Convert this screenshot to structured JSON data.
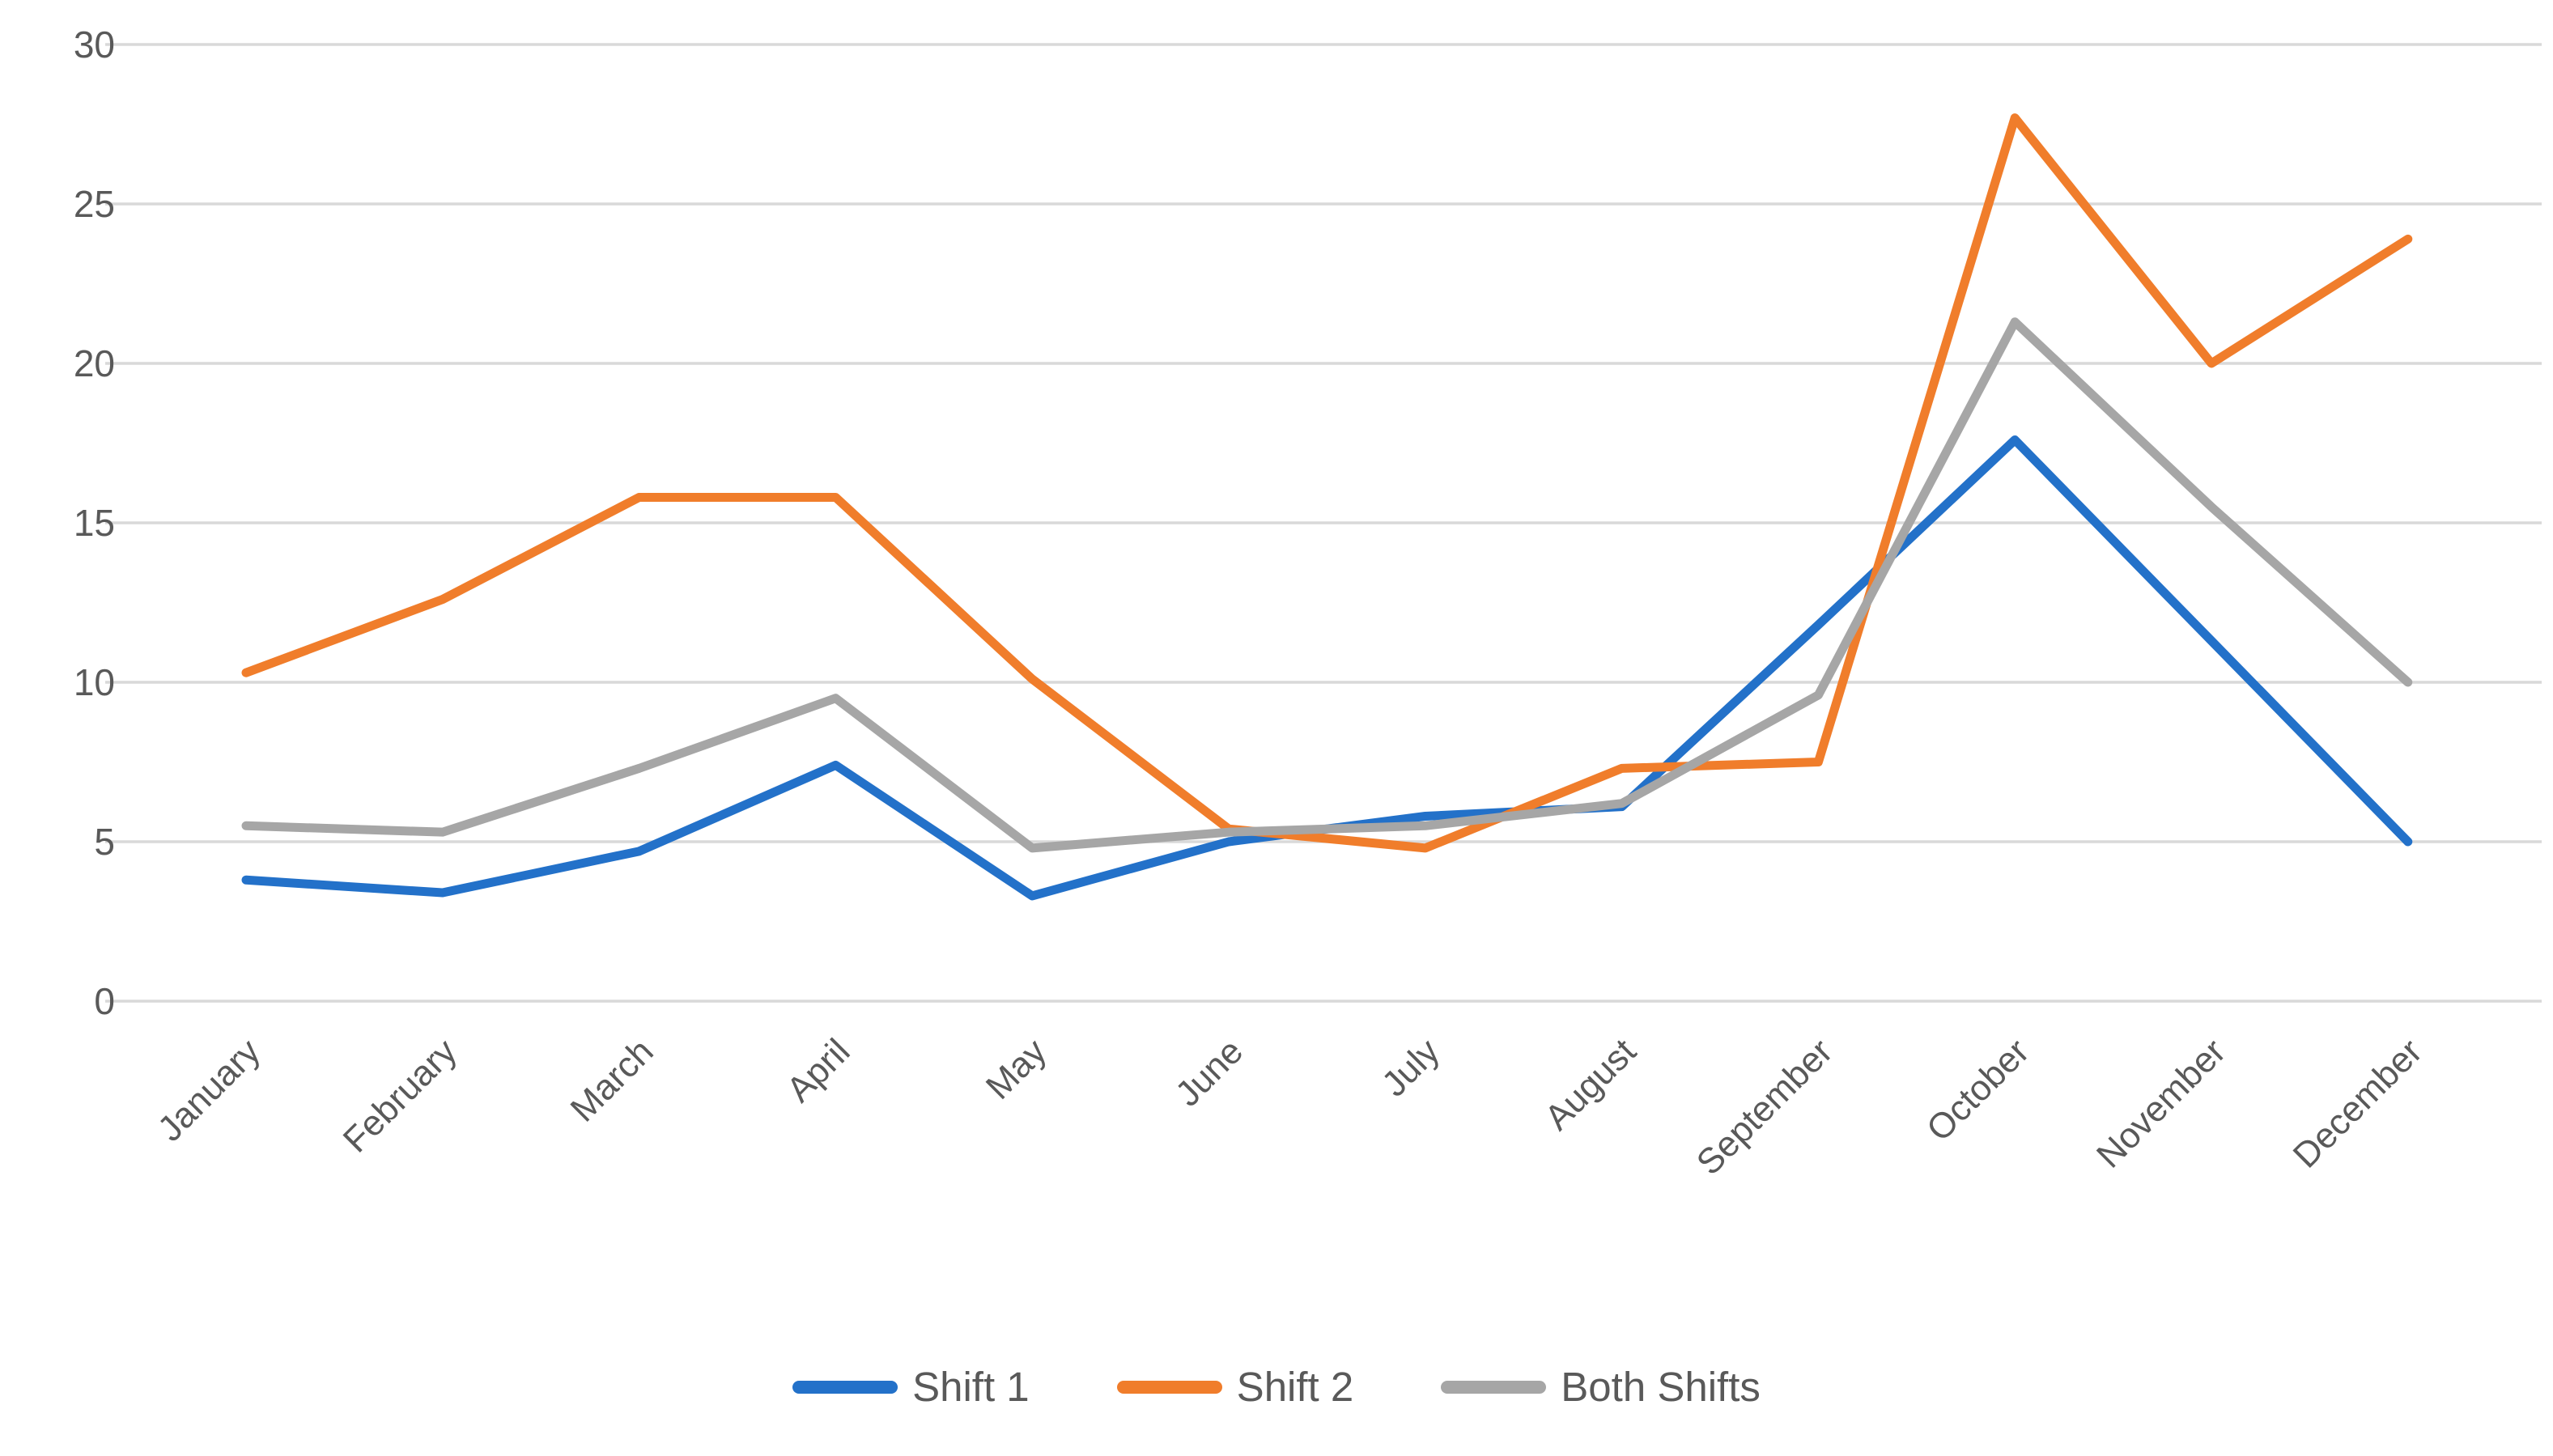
{
  "chart_data": {
    "type": "line",
    "title": "",
    "xlabel": "",
    "ylabel": "",
    "categories": [
      "January",
      "February",
      "March",
      "April",
      "May",
      "June",
      "July",
      "August",
      "September",
      "October",
      "November",
      "December"
    ],
    "series": [
      {
        "name": "Shift 1",
        "color": "#2371C9",
        "values": [
          3.8,
          3.4,
          4.7,
          7.4,
          3.3,
          5.0,
          5.8,
          6.1,
          11.8,
          17.6,
          11.3,
          5.0
        ]
      },
      {
        "name": "Shift 2",
        "color": "#F07D2B",
        "values": [
          10.3,
          12.6,
          15.8,
          15.8,
          10.1,
          5.4,
          4.8,
          7.3,
          7.5,
          27.7,
          20.0,
          23.9
        ]
      },
      {
        "name": "Both Shifts",
        "color": "#A6A6A6",
        "values": [
          5.5,
          5.3,
          7.3,
          9.5,
          4.8,
          5.3,
          5.5,
          6.2,
          9.6,
          21.3,
          15.5,
          10.0
        ]
      }
    ],
    "y_ticks": [
      0,
      5,
      10,
      15,
      20,
      25,
      30
    ],
    "ylim": [
      0,
      30
    ],
    "grid": true,
    "legend_position": "bottom",
    "colors": {
      "background": "#FFFFFF",
      "gridline": "#D9D9D9",
      "tick_text": "#595959",
      "legend_text": "#595959"
    }
  }
}
